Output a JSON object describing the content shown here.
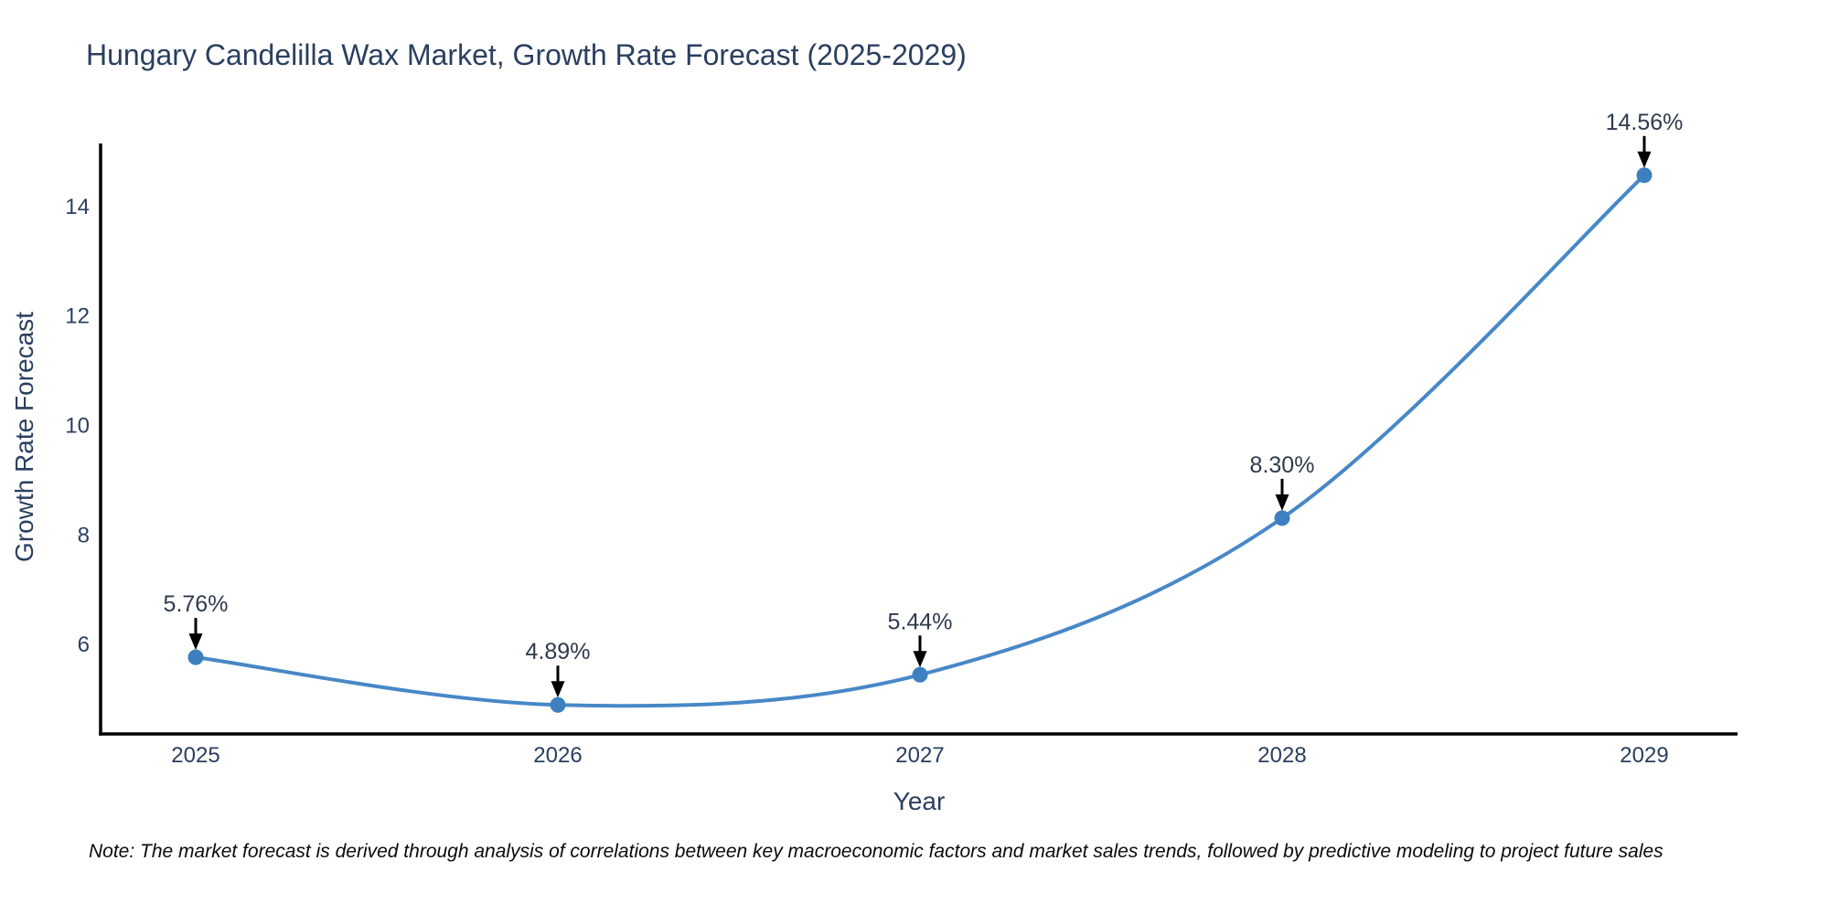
{
  "chart_data": {
    "type": "line",
    "title": "Hungary Candelilla Wax Market, Growth Rate Forecast (2025-2029)",
    "xlabel": "Year",
    "ylabel": "Growth Rate Forecast",
    "note": "Note: The market forecast is derived through analysis of correlations between key macroeconomic factors and market sales trends, followed by predictive modeling to project future sales",
    "categories": [
      "2025",
      "2026",
      "2027",
      "2028",
      "2029"
    ],
    "values": [
      5.76,
      4.89,
      5.44,
      8.3,
      14.56
    ],
    "point_labels": [
      "5.76%",
      "4.89%",
      "5.44%",
      "8.30%",
      "14.56%"
    ],
    "yticks": [
      6,
      8,
      10,
      12,
      14
    ],
    "ylim": [
      4.36,
      15.14
    ],
    "grid": false,
    "legend": false,
    "line_shape": "spline",
    "marker_style": "circle",
    "colors": {
      "line": "#4788c7",
      "marker": "#3c80bf",
      "axis_line": "#000000",
      "annotation_arrow": "#000000",
      "annotation_text": "#2e3a4d",
      "tick_text": "#2a3f5f",
      "title_text": "#2a3f5f",
      "note_text": "#0a0a0a",
      "background": "#ffffff"
    }
  }
}
